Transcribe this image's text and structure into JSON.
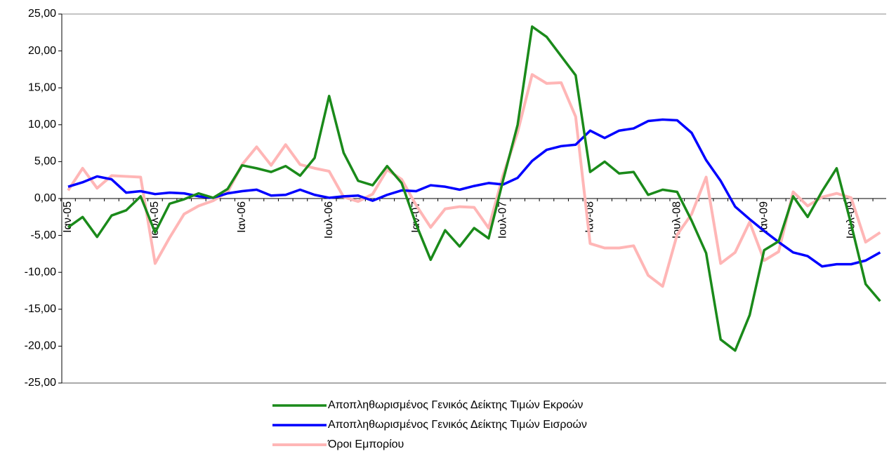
{
  "chart_data": {
    "type": "line",
    "categories": [
      "Ιαν-05",
      null,
      null,
      null,
      null,
      null,
      "Ιουλ-05",
      null,
      null,
      null,
      null,
      null,
      "Ιαν-06",
      null,
      null,
      null,
      null,
      null,
      "Ιουλ-06",
      null,
      null,
      null,
      null,
      null,
      "Ιαν-07",
      null,
      null,
      null,
      null,
      null,
      "Ιουλ-07",
      null,
      null,
      null,
      null,
      null,
      "Ιαν-08",
      null,
      null,
      null,
      null,
      null,
      "Ιουλ-08",
      null,
      null,
      null,
      null,
      null,
      "Ιαν-09",
      null,
      null,
      null,
      null,
      null,
      "Ιουλ-09",
      null,
      null
    ],
    "series": [
      {
        "name": "Αποπληθωρισμένος Γενικός Δείκτης Τιμών Εκροών",
        "color": "#1a8a1a",
        "values": [
          -3.9,
          -2.5,
          -5.2,
          -2.3,
          -1.6,
          0.3,
          -4.6,
          -0.7,
          -0.1,
          0.7,
          0.1,
          1.3,
          4.5,
          4.1,
          3.6,
          4.4,
          3.1,
          5.5,
          13.9,
          6.2,
          2.4,
          1.8,
          4.4,
          2.1,
          -3.5,
          -8.3,
          -4.3,
          -6.5,
          -4.0,
          -5.4,
          2.5,
          10.0,
          23.3,
          21.9,
          19.3,
          16.7,
          3.6,
          5.0,
          3.4,
          3.6,
          0.5,
          1.2,
          0.9,
          -3.0,
          -7.4,
          -19.1,
          -20.6,
          -15.8,
          -7.0,
          -5.8,
          0.3,
          -2.5,
          1.0,
          4.1,
          -3.5,
          -11.6,
          -13.9
        ]
      },
      {
        "name": "Αποπληθωρισμένος Γενικός Δείκτης Τιμών Εισροών",
        "color": "#0000ff",
        "values": [
          1.6,
          2.2,
          3.0,
          2.6,
          0.8,
          1.0,
          0.6,
          0.8,
          0.7,
          0.3,
          0.1,
          0.7,
          1.0,
          1.2,
          0.4,
          0.5,
          1.2,
          0.5,
          0.1,
          0.3,
          0.4,
          -0.3,
          0.5,
          1.1,
          1.0,
          1.8,
          1.6,
          1.2,
          1.7,
          2.1,
          1.9,
          2.8,
          5.1,
          6.6,
          7.1,
          7.3,
          9.2,
          8.2,
          9.2,
          9.5,
          10.5,
          10.7,
          10.6,
          8.9,
          5.2,
          2.4,
          -1.1,
          -2.8,
          -4.4,
          -5.9,
          -7.3,
          -7.8,
          -9.2,
          -8.9,
          -8.9,
          -8.4,
          -7.3
        ]
      },
      {
        "name": "Όροι Εμπορίου",
        "color": "#ffb6b6",
        "values": [
          1.1,
          4.1,
          1.4,
          3.1,
          3.0,
          2.9,
          -8.8,
          -5.3,
          -2.1,
          -1.0,
          -0.3,
          0.9,
          4.6,
          7.0,
          4.5,
          7.3,
          4.6,
          4.1,
          3.7,
          0.2,
          -0.4,
          0.6,
          3.9,
          2.6,
          -0.9,
          -3.9,
          -1.4,
          -1.1,
          -1.2,
          -4.0,
          3.2,
          9.0,
          16.8,
          15.6,
          15.7,
          11.1,
          -6.1,
          -6.7,
          -6.7,
          -6.4,
          -10.4,
          -11.9,
          -4.9,
          -2.1,
          2.9,
          -8.8,
          -7.3,
          -3.2,
          -8.4,
          -7.2,
          0.9,
          -1.0,
          0.2,
          0.7,
          0.1,
          -5.9,
          -4.6
        ]
      }
    ],
    "ylim": [
      -25,
      25
    ],
    "yticks": [
      {
        "value": -25,
        "label": "-25,00"
      },
      {
        "value": -20,
        "label": "-20,00"
      },
      {
        "value": -15,
        "label": "-15,00"
      },
      {
        "value": -10,
        "label": "-10,00"
      },
      {
        "value": -5,
        "label": "-5,00"
      },
      {
        "value": 0,
        "label": "0,00"
      },
      {
        "value": 5,
        "label": "5,00"
      },
      {
        "value": 10,
        "label": "10,00"
      },
      {
        "value": 15,
        "label": "15,00"
      },
      {
        "value": 20,
        "label": "20,00"
      },
      {
        "value": 25,
        "label": "25,00"
      }
    ],
    "grid": false,
    "legend": "bottom"
  }
}
